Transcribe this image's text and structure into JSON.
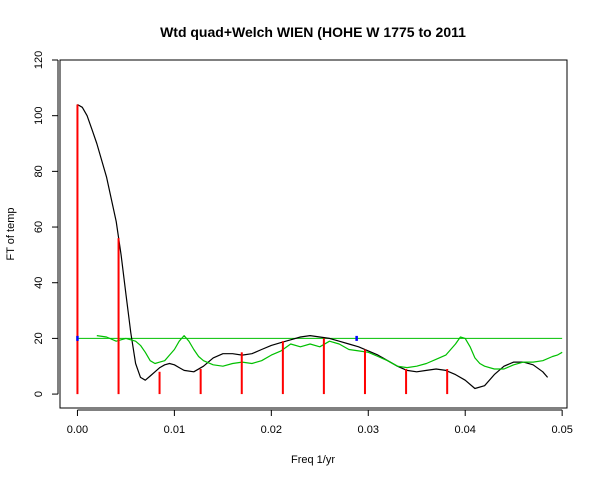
{
  "chart_data": {
    "type": "line",
    "title": "Wtd quad+Welch WIEN (HOHE W 1775 to 2011",
    "xlabel": "Freq 1/yr",
    "ylabel": "FT of temp",
    "xlim": [
      -0.0018,
      0.0505
    ],
    "ylim": [
      -5,
      120
    ],
    "x_ticks": [
      0.0,
      0.01,
      0.02,
      0.03,
      0.04,
      0.05
    ],
    "x_tick_labels": [
      "0.00",
      "0.01",
      "0.02",
      "0.03",
      "0.04",
      "0.05"
    ],
    "y_ticks": [
      0,
      20,
      40,
      60,
      80,
      100,
      120
    ],
    "y_tick_labels": [
      "0",
      "20",
      "40",
      "60",
      "80",
      "100",
      "120"
    ],
    "grid": false,
    "colors": {
      "smooth": "#000000",
      "noise": "#00c000",
      "threshold": "#00c000",
      "bars": "#ff0000",
      "markers": "#0000ff"
    },
    "series": [
      {
        "role": "smooth",
        "x": [
          0.0,
          0.0005,
          0.001,
          0.0015,
          0.002,
          0.003,
          0.004,
          0.0045,
          0.005,
          0.0055,
          0.006,
          0.0065,
          0.007,
          0.0075,
          0.008,
          0.0085,
          0.009,
          0.0095,
          0.01,
          0.0105,
          0.011,
          0.012,
          0.013,
          0.014,
          0.015,
          0.016,
          0.017,
          0.018,
          0.019,
          0.02,
          0.021,
          0.022,
          0.023,
          0.024,
          0.025,
          0.026,
          0.027,
          0.028,
          0.029,
          0.03,
          0.031,
          0.032,
          0.033,
          0.034,
          0.035,
          0.036,
          0.037,
          0.038,
          0.039,
          0.04,
          0.041,
          0.042,
          0.043,
          0.044,
          0.045,
          0.046,
          0.047,
          0.048,
          0.0485
        ],
        "y": [
          104,
          103,
          100,
          95,
          90,
          78,
          62,
          50,
          36,
          22,
          11,
          6,
          5,
          6.5,
          8,
          9.5,
          10.5,
          11,
          10.5,
          9.5,
          8.5,
          8,
          10,
          13,
          14.5,
          14.5,
          14,
          14.5,
          16,
          17.5,
          18.5,
          19.5,
          20.5,
          21,
          20.5,
          20,
          19,
          18,
          17,
          15.5,
          14,
          12,
          10,
          8.5,
          8,
          8.5,
          9,
          8.5,
          7,
          5,
          2,
          3,
          7,
          10,
          11.5,
          11.5,
          10.5,
          8,
          6
        ]
      },
      {
        "role": "noise",
        "x": [
          0.002,
          0.003,
          0.004,
          0.005,
          0.006,
          0.0065,
          0.007,
          0.0075,
          0.008,
          0.0085,
          0.009,
          0.0095,
          0.01,
          0.0105,
          0.011,
          0.0115,
          0.012,
          0.0125,
          0.013,
          0.014,
          0.015,
          0.016,
          0.017,
          0.018,
          0.019,
          0.02,
          0.021,
          0.022,
          0.023,
          0.024,
          0.025,
          0.026,
          0.027,
          0.028,
          0.029,
          0.03,
          0.031,
          0.032,
          0.033,
          0.034,
          0.035,
          0.036,
          0.037,
          0.038,
          0.0385,
          0.039,
          0.0395,
          0.04,
          0.0405,
          0.041,
          0.0415,
          0.042,
          0.043,
          0.044,
          0.045,
          0.046,
          0.047,
          0.048,
          0.049,
          0.0495,
          0.05
        ],
        "y": [
          21,
          20.5,
          19,
          20,
          19,
          17.5,
          15,
          12,
          11,
          11.5,
          12,
          14,
          16,
          19,
          21,
          19,
          16,
          13.5,
          12,
          10.5,
          10,
          11,
          11.5,
          11,
          12,
          14,
          15.5,
          18,
          17,
          18,
          17,
          19,
          18,
          16,
          15.5,
          15,
          13.5,
          12,
          10,
          9.5,
          10,
          11,
          12.5,
          14,
          16,
          18,
          20.5,
          20,
          17,
          13,
          11,
          10,
          9,
          9,
          10.5,
          11.5,
          11.5,
          12,
          13.5,
          14,
          15
        ]
      }
    ],
    "threshold": {
      "y": 20,
      "x": [
        0.0,
        0.05
      ]
    },
    "bars": {
      "x": [
        0.0,
        0.00424,
        0.00847,
        0.01271,
        0.01695,
        0.02119,
        0.02542,
        0.02966,
        0.0339,
        0.03814
      ],
      "y": [
        104,
        56,
        8,
        9,
        15,
        19,
        20,
        16,
        9,
        9
      ]
    },
    "markers": {
      "x": [
        0.0,
        0.0288
      ],
      "y": [
        20,
        20
      ]
    }
  }
}
